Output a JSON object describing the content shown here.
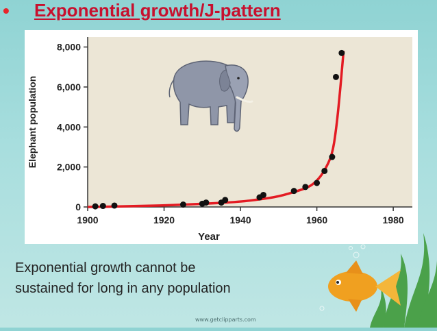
{
  "slide": {
    "bullet": "•",
    "title": "Exponential growth/J-pattern",
    "caption_line1": "Exponential growth cannot be",
    "caption_line2": "sustained for long in any population",
    "watermark": "www.getclipparts.com"
  },
  "colors": {
    "title": "#c8102e",
    "curve": "#e31b23",
    "points": "#111111",
    "plot_bg": "#ece6d6"
  },
  "icons": [
    "elephant-icon",
    "goldfish-icon",
    "seaweed-icon",
    "bubble-icon"
  ],
  "chart_data": {
    "type": "scatter",
    "title": "",
    "xlabel": "Year",
    "ylabel": "Elephant population",
    "xlim": [
      1900,
      1985
    ],
    "ylim": [
      0,
      8500
    ],
    "x_ticks": [
      1900,
      1920,
      1940,
      1960,
      1980
    ],
    "x_tick_labels": [
      "1900",
      "1920",
      "1940",
      "1960",
      "1980"
    ],
    "y_ticks": [
      0,
      2000,
      4000,
      6000,
      8000
    ],
    "y_tick_labels": [
      "0",
      "2,000",
      "4,000",
      "6,000",
      "8,000"
    ],
    "grid": false,
    "legend": "none",
    "points": {
      "x": [
        1902,
        1904,
        1907,
        1925,
        1930,
        1931,
        1935,
        1936,
        1945,
        1946,
        1954,
        1957,
        1960,
        1962,
        1964,
        1965,
        1966.5
      ],
      "y": [
        30,
        50,
        70,
        120,
        160,
        220,
        220,
        350,
        480,
        600,
        800,
        1000,
        1200,
        1800,
        2500,
        6500,
        7700
      ]
    },
    "curve": {
      "x": [
        1900,
        1910,
        1920,
        1930,
        1940,
        1945,
        1950,
        1955,
        1958,
        1960,
        1962,
        1964,
        1965,
        1966,
        1967
      ],
      "y": [
        0,
        30,
        80,
        150,
        260,
        380,
        520,
        800,
        1000,
        1300,
        1800,
        2600,
        3800,
        5600,
        7800
      ]
    }
  }
}
